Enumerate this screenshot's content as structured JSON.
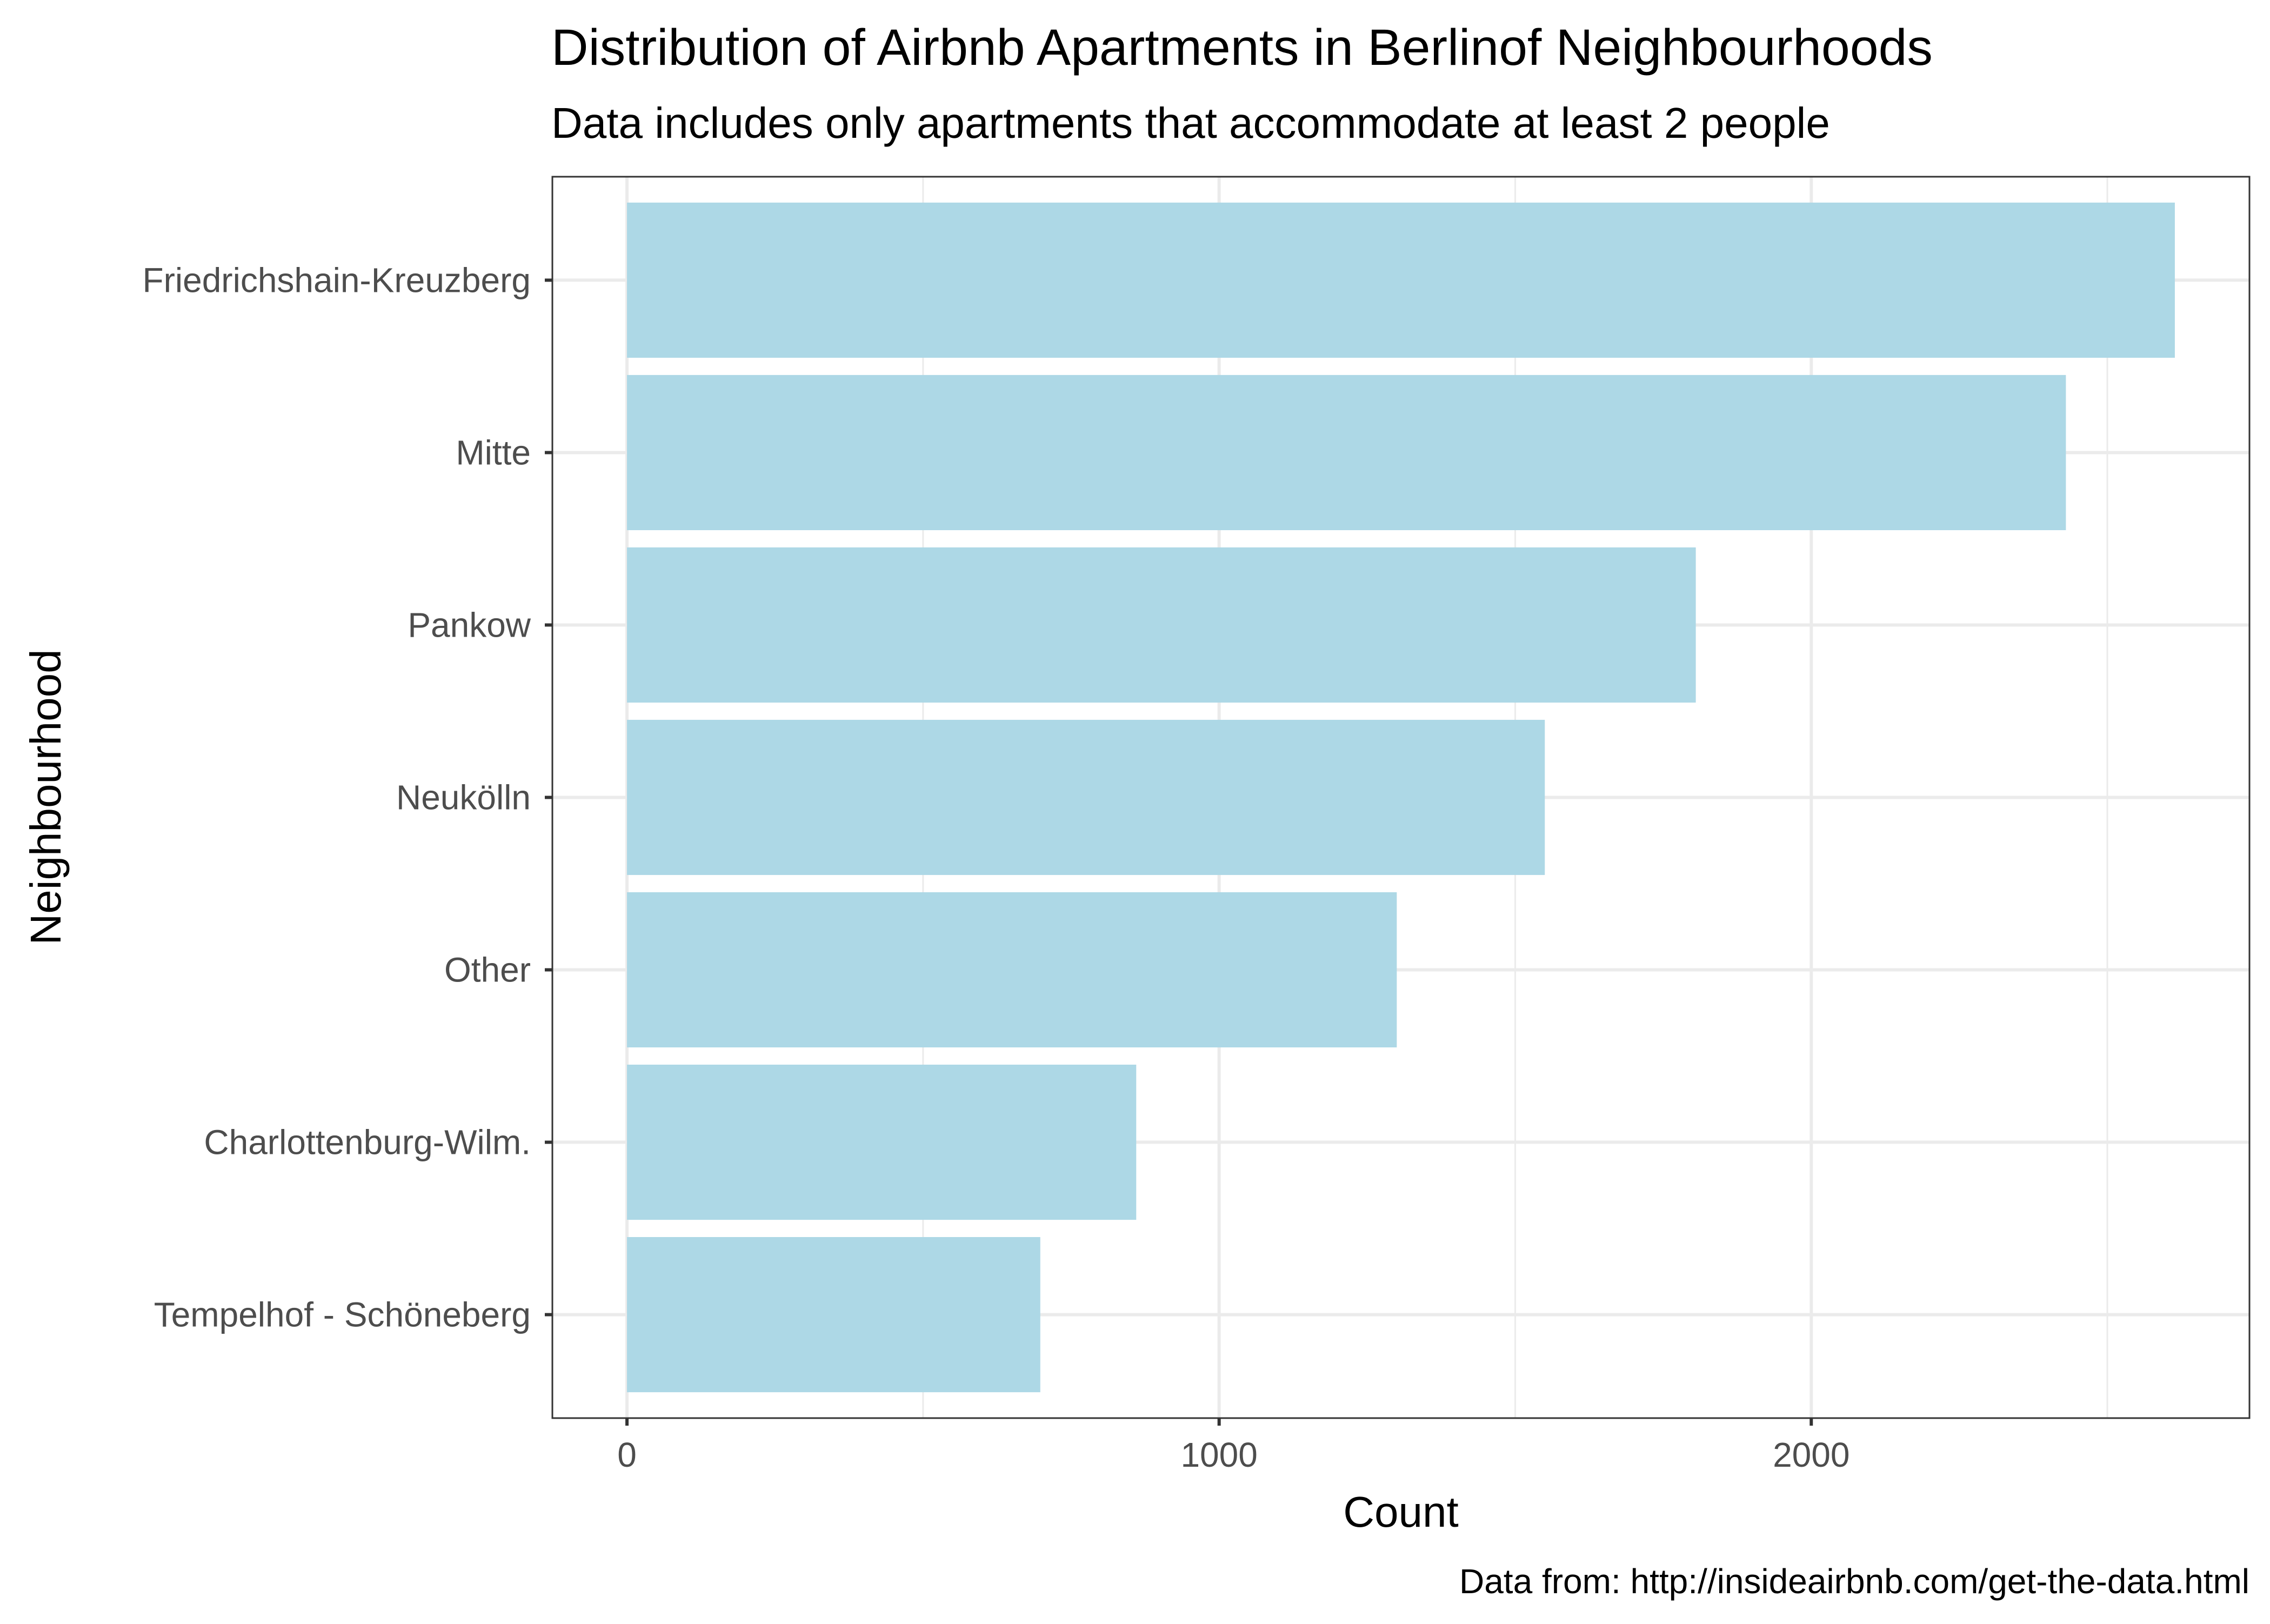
{
  "chart_data": {
    "type": "bar",
    "orientation": "horizontal",
    "title": "Distribution of Airbnb Apartments in Berlinof Neighbourhoods",
    "subtitle": "Data includes only apartments that accommodate at least 2 people",
    "xlabel": "Count",
    "ylabel": "Neighbourhood",
    "caption": "Data from: http://insideairbnb.com/get-the-data.html",
    "categories": [
      "Friedrichshain-Kreuzberg",
      "Mitte",
      "Pankow",
      "Neukölln",
      "Other",
      "Charlottenburg-Wilm.",
      "Tempelhof - Schöneberg"
    ],
    "values": [
      2614,
      2430,
      1805,
      1550,
      1300,
      860,
      698
    ],
    "xlim": [
      -126,
      2740
    ],
    "xticks": [
      0,
      1000,
      2000
    ],
    "xtick_labels": [
      "0",
      "1000",
      "2000"
    ],
    "minor_xticks": [
      500,
      1500,
      2500
    ],
    "grid": true,
    "colors": {
      "bar": "#ADD8E6",
      "grid": "#EBEBEB",
      "panel_border": "#333333",
      "tick_text": "#4D4D4D",
      "text": "#000000"
    }
  }
}
